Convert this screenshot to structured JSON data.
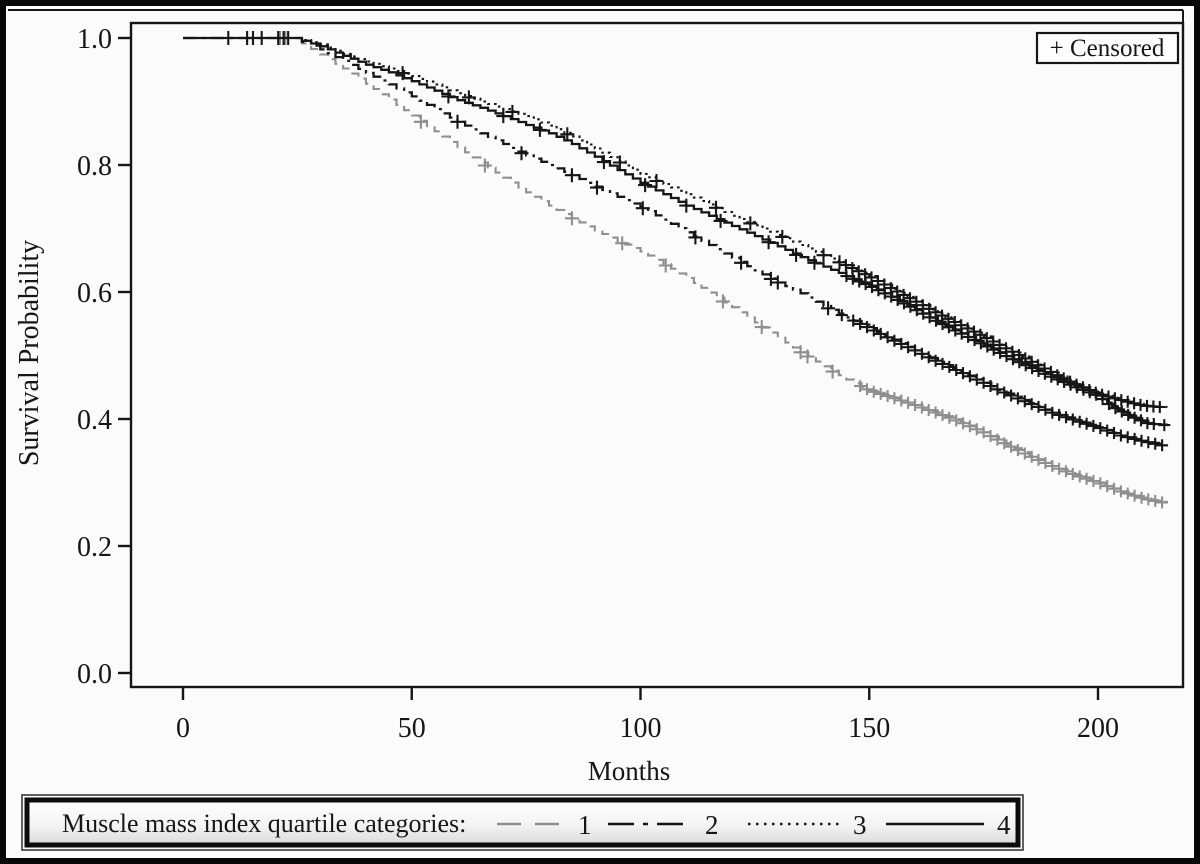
{
  "figure": {
    "background": "#fbfbfb",
    "border_color": "#080808",
    "text_color": "#161616"
  },
  "chart_data": {
    "type": "line",
    "subtype": "kaplan-meier-step",
    "title": "",
    "xlabel": "Months",
    "ylabel": "Survival Probability",
    "xlim": [
      0,
      220
    ],
    "ylim": [
      0.0,
      1.0
    ],
    "x_ticks": [
      0,
      50,
      100,
      150,
      200
    ],
    "x_tick_labels": [
      "0",
      "50",
      "100",
      "150",
      "200"
    ],
    "y_ticks": [
      1.0,
      0.8,
      0.6,
      0.4,
      0.2,
      0.0
    ],
    "y_tick_labels": [
      "1.0",
      "0.8",
      "0.6",
      "0.4",
      "0.2",
      "0.0"
    ],
    "grid": false,
    "censored_legend": "+ Censored",
    "censored_marker": "+",
    "legend_title": "Muscle mass index quartile categories:",
    "legend_position": "bottom",
    "series": [
      {
        "name": "quartile-1",
        "label": "1",
        "color": "#8f8f8f",
        "line_style": "dashed",
        "dash": "10 7",
        "legend_dash": "24 14",
        "width": 2.1,
        "points": [
          [
            0,
            1
          ],
          [
            24,
            1
          ],
          [
            30,
            0.974
          ],
          [
            35,
            0.952
          ],
          [
            40,
            0.928
          ],
          [
            45,
            0.903
          ],
          [
            50,
            0.878
          ],
          [
            55,
            0.853
          ],
          [
            60,
            0.828
          ],
          [
            65,
            0.804
          ],
          [
            70,
            0.78
          ],
          [
            75,
            0.757
          ],
          [
            80,
            0.736
          ],
          [
            85,
            0.716
          ],
          [
            90,
            0.697
          ],
          [
            95,
            0.68
          ],
          [
            100,
            0.664
          ],
          [
            105,
            0.644
          ],
          [
            110,
            0.622
          ],
          [
            115,
            0.599
          ],
          [
            120,
            0.576
          ],
          [
            125,
            0.552
          ],
          [
            130,
            0.528
          ],
          [
            135,
            0.505
          ],
          [
            140,
            0.483
          ],
          [
            145,
            0.462
          ],
          [
            150,
            0.445
          ],
          [
            155,
            0.434
          ],
          [
            160,
            0.422
          ],
          [
            165,
            0.409
          ],
          [
            170,
            0.395
          ],
          [
            175,
            0.379
          ],
          [
            180,
            0.36
          ],
          [
            185,
            0.342
          ],
          [
            190,
            0.326
          ],
          [
            195,
            0.312
          ],
          [
            200,
            0.3
          ],
          [
            205,
            0.286
          ],
          [
            210,
            0.275
          ],
          [
            215,
            0.267
          ]
        ],
        "censor_months": [
          21.2,
          22.4,
          52,
          66,
          85,
          96,
          105.5,
          118,
          126.5,
          135,
          136.5,
          142,
          148,
          149.5,
          151,
          152.5,
          154,
          155.5,
          157,
          158.5,
          160,
          161.5,
          163,
          164.5,
          166,
          167.5,
          169,
          170.5,
          172,
          173.5,
          175,
          176.5,
          178,
          179.5,
          181,
          182.5,
          184,
          185.5,
          187,
          188.5,
          190,
          191.5,
          193,
          194.5,
          196,
          197.5,
          199,
          200.5,
          202,
          203.5,
          205,
          206.5,
          208,
          209.5,
          211,
          212.5,
          214
        ]
      },
      {
        "name": "quartile-2",
        "label": "2",
        "color": "#161616",
        "line_style": "dash-dot",
        "dash": "13 6 3 6",
        "legend_dash": "26 9 5 9",
        "width": 2.3,
        "points": [
          [
            0,
            1
          ],
          [
            24,
            1
          ],
          [
            30,
            0.982
          ],
          [
            35,
            0.964
          ],
          [
            40,
            0.945
          ],
          [
            45,
            0.927
          ],
          [
            50,
            0.908
          ],
          [
            55,
            0.888
          ],
          [
            60,
            0.868
          ],
          [
            65,
            0.85
          ],
          [
            70,
            0.833
          ],
          [
            75,
            0.815
          ],
          [
            80,
            0.8
          ],
          [
            85,
            0.784
          ],
          [
            90,
            0.766
          ],
          [
            95,
            0.75
          ],
          [
            100,
            0.734
          ],
          [
            105,
            0.714
          ],
          [
            110,
            0.694
          ],
          [
            115,
            0.674
          ],
          [
            120,
            0.654
          ],
          [
            125,
            0.634
          ],
          [
            130,
            0.615
          ],
          [
            135,
            0.598
          ],
          [
            140,
            0.578
          ],
          [
            145,
            0.56
          ],
          [
            150,
            0.543
          ],
          [
            155,
            0.525
          ],
          [
            160,
            0.508
          ],
          [
            165,
            0.49
          ],
          [
            170,
            0.474
          ],
          [
            175,
            0.457
          ],
          [
            180,
            0.44
          ],
          [
            185,
            0.425
          ],
          [
            190,
            0.41
          ],
          [
            195,
            0.398
          ],
          [
            200,
            0.387
          ],
          [
            205,
            0.374
          ],
          [
            210,
            0.365
          ],
          [
            215,
            0.357
          ]
        ],
        "censor_months": [
          17.2,
          23,
          60,
          74,
          85,
          90.5,
          100.5,
          112,
          122,
          128.5,
          130,
          141,
          144,
          146.5,
          148,
          149.5,
          151,
          152.5,
          154,
          155.5,
          157,
          158.5,
          160,
          161.5,
          163,
          164.5,
          166,
          167.5,
          169,
          170.5,
          172,
          173.5,
          175,
          176.5,
          178,
          179.5,
          181,
          182.5,
          184,
          185.5,
          187,
          188.5,
          190,
          191.5,
          193,
          194.5,
          196,
          197.5,
          199,
          200.5,
          202,
          203.5,
          205,
          206.5,
          208,
          209.5,
          211,
          212.5,
          214
        ]
      },
      {
        "name": "quartile-3",
        "label": "3",
        "color": "#161616",
        "line_style": "dotted",
        "dash": "2.5 4",
        "legend_dash": "2.5 5.5",
        "width": 2.1,
        "points": [
          [
            0,
            1
          ],
          [
            24,
            1
          ],
          [
            30,
            0.99
          ],
          [
            35,
            0.975
          ],
          [
            40,
            0.963
          ],
          [
            45,
            0.952
          ],
          [
            50,
            0.94
          ],
          [
            55,
            0.927
          ],
          [
            60,
            0.913
          ],
          [
            65,
            0.9
          ],
          [
            70,
            0.888
          ],
          [
            75,
            0.877
          ],
          [
            80,
            0.862
          ],
          [
            85,
            0.845
          ],
          [
            90,
            0.826
          ],
          [
            95,
            0.806
          ],
          [
            100,
            0.786
          ],
          [
            105,
            0.77
          ],
          [
            110,
            0.754
          ],
          [
            115,
            0.738
          ],
          [
            120,
            0.72
          ],
          [
            125,
            0.705
          ],
          [
            130,
            0.69
          ],
          [
            135,
            0.674
          ],
          [
            140,
            0.658
          ],
          [
            145,
            0.642
          ],
          [
            150,
            0.625
          ],
          [
            155,
            0.605
          ],
          [
            160,
            0.586
          ],
          [
            165,
            0.566
          ],
          [
            170,
            0.548
          ],
          [
            175,
            0.53
          ],
          [
            180,
            0.511
          ],
          [
            185,
            0.492
          ],
          [
            190,
            0.473
          ],
          [
            195,
            0.455
          ],
          [
            200,
            0.44
          ],
          [
            205,
            0.43
          ],
          [
            210,
            0.421
          ],
          [
            215,
            0.418
          ]
        ],
        "censor_months": [
          14,
          20.8,
          48,
          62.5,
          72,
          84,
          95.5,
          103.5,
          116.5,
          124,
          131,
          140,
          143.5,
          144.9,
          146.3,
          147.7,
          149.1,
          150.5,
          151.9,
          153.3,
          154.7,
          156.1,
          157.5,
          158.9,
          160.3,
          161.7,
          163.1,
          164.5,
          165.9,
          167.3,
          168.7,
          170.1,
          171.5,
          172.9,
          174.3,
          175.7,
          177.1,
          178.5,
          179.9,
          181.3,
          182.7,
          184.1,
          185.5,
          186.9,
          188.3,
          189.7,
          191.1,
          192.5,
          193.9,
          195.3,
          196.7,
          198.1,
          199.5,
          200.9,
          202.3,
          203.7,
          205.1,
          206.5,
          207.9,
          209.3,
          210.7,
          212.1,
          213.5
        ]
      },
      {
        "name": "quartile-4",
        "label": "4",
        "color": "#161616",
        "line_style": "solid",
        "dash": null,
        "legend_dash": null,
        "width": 2.3,
        "points": [
          [
            0,
            1
          ],
          [
            24,
            1
          ],
          [
            30,
            0.987
          ],
          [
            35,
            0.972
          ],
          [
            40,
            0.958
          ],
          [
            45,
            0.946
          ],
          [
            50,
            0.932
          ],
          [
            55,
            0.917
          ],
          [
            60,
            0.902
          ],
          [
            65,
            0.89
          ],
          [
            70,
            0.877
          ],
          [
            75,
            0.863
          ],
          [
            80,
            0.85
          ],
          [
            85,
            0.833
          ],
          [
            90,
            0.813
          ],
          [
            95,
            0.792
          ],
          [
            100,
            0.772
          ],
          [
            105,
            0.754
          ],
          [
            110,
            0.736
          ],
          [
            115,
            0.72
          ],
          [
            120,
            0.704
          ],
          [
            125,
            0.688
          ],
          [
            130,
            0.672
          ],
          [
            135,
            0.655
          ],
          [
            140,
            0.64
          ],
          [
            145,
            0.625
          ],
          [
            150,
            0.61
          ],
          [
            155,
            0.592
          ],
          [
            160,
            0.573
          ],
          [
            165,
            0.553
          ],
          [
            170,
            0.535
          ],
          [
            175,
            0.517
          ],
          [
            180,
            0.499
          ],
          [
            185,
            0.482
          ],
          [
            190,
            0.466
          ],
          [
            195,
            0.451
          ],
          [
            200,
            0.437
          ],
          [
            203,
            0.42
          ],
          [
            207,
            0.405
          ],
          [
            211,
            0.393
          ],
          [
            215,
            0.39
          ]
        ],
        "censor_months": [
          9.9,
          15.3,
          22,
          58,
          70,
          78,
          92,
          101,
          110,
          117.5,
          128,
          134,
          138,
          145,
          146.4,
          147.8,
          149.2,
          150.6,
          152,
          153.4,
          154.8,
          156.2,
          157.6,
          159,
          160.4,
          161.8,
          163.2,
          164.6,
          166,
          167.4,
          168.8,
          170.2,
          171.6,
          173,
          174.4,
          175.8,
          177.2,
          178.6,
          180,
          181.4,
          182.8,
          184.2,
          185.6,
          187,
          188.4,
          189.8,
          191.2,
          192.6,
          194,
          195.4,
          196.8,
          198.2,
          199.6,
          201,
          202.4,
          203.8,
          205.2,
          206.6,
          208,
          209.4,
          210.8,
          212.2,
          214.5
        ]
      }
    ]
  }
}
